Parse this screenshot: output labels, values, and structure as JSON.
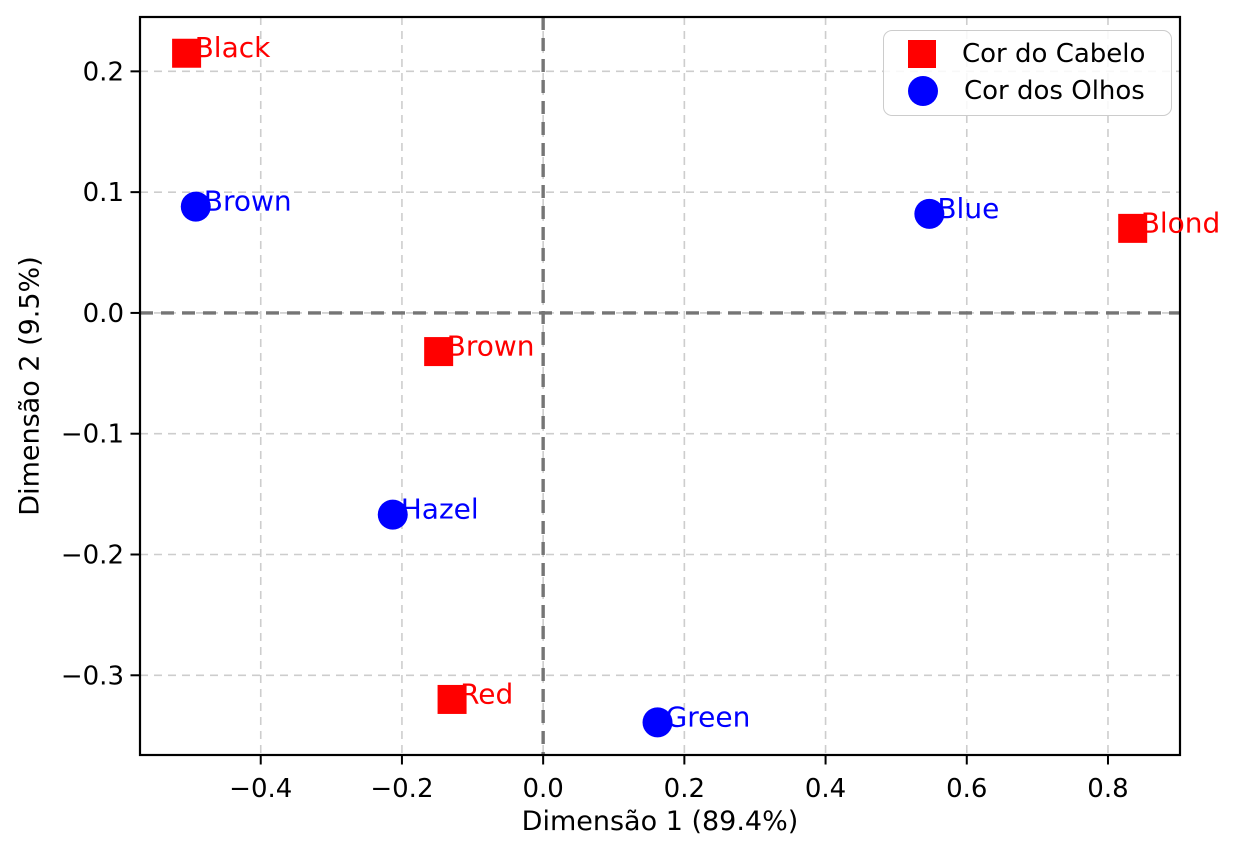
{
  "figure": {
    "background": "#ffffff"
  },
  "chart_data": {
    "type": "scatter",
    "title": "",
    "xlabel": "Dimensão 1 (89.4%)",
    "ylabel": "Dimensão 2 (9.5%)",
    "xlim": [
      -0.571,
      0.902
    ],
    "ylim": [
      -0.366,
      0.245
    ],
    "xticks": [
      -0.4,
      -0.2,
      0.0,
      0.2,
      0.4,
      0.6,
      0.8
    ],
    "yticks": [
      0.2,
      0.1,
      0.0,
      -0.1,
      -0.2,
      -0.3
    ],
    "grid": true,
    "grid_style": "dashed",
    "zero_lines": {
      "x": 0.0,
      "y": 0.0,
      "style": "dashed"
    },
    "legend_position": "upper-right",
    "series": [
      {
        "name": "Cor do Cabelo",
        "marker": "square",
        "color": "#ff0000",
        "points": [
          {
            "label": "Black",
            "x": -0.505,
            "y": 0.215
          },
          {
            "label": "Brown",
            "x": -0.148,
            "y": -0.032
          },
          {
            "label": "Red",
            "x": -0.129,
            "y": -0.32
          },
          {
            "label": "Blond",
            "x": 0.835,
            "y": 0.07
          }
        ]
      },
      {
        "name": "Cor dos Olhos",
        "marker": "circle",
        "color": "#0000ff",
        "points": [
          {
            "label": "Brown",
            "x": -0.492,
            "y": 0.088
          },
          {
            "label": "Blue",
            "x": 0.547,
            "y": 0.082
          },
          {
            "label": "Hazel",
            "x": -0.213,
            "y": -0.167
          },
          {
            "label": "Green",
            "x": 0.162,
            "y": -0.339
          }
        ]
      }
    ],
    "colors": {
      "grid": "#cdcdcd",
      "zero_line": "#757575",
      "axis": "#000000",
      "tick_label": "#000000"
    }
  }
}
